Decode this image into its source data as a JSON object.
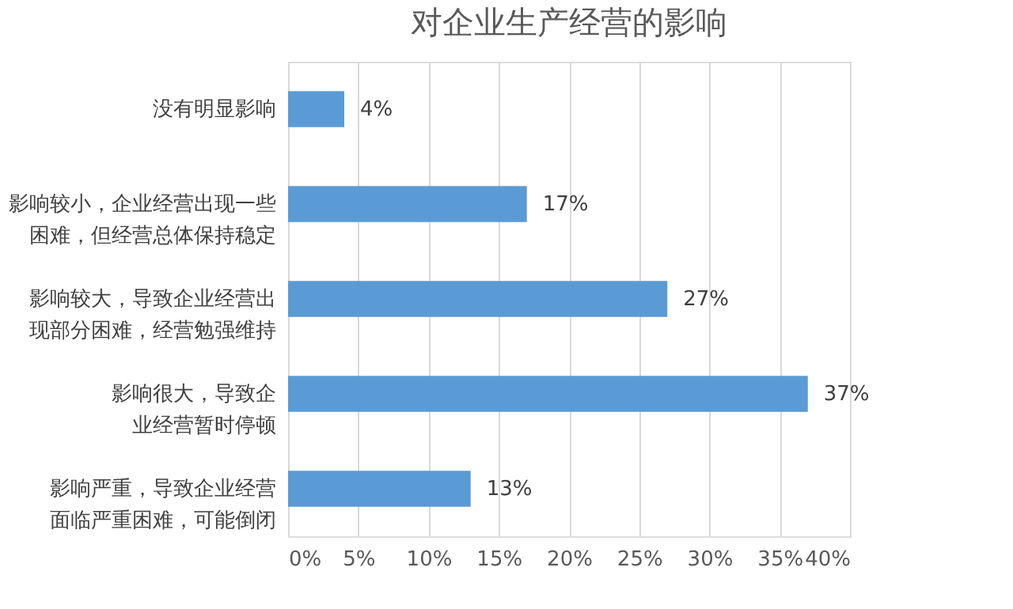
{
  "chart_data": {
    "type": "bar",
    "orientation": "horizontal",
    "title": "对企业生产经营的影响",
    "categories": [
      "没有明显影响",
      "影响较小，企业经营出现一些困难，但经营总体保持稳定",
      "影响较大，导致企业经营出现部分困难，经营勉强维持",
      "影响很大，导致企业经营暂时停顿",
      "影响严重，导致企业经营面临严重困难，可能倒闭"
    ],
    "values": [
      4,
      17,
      27,
      37,
      13
    ],
    "value_labels": [
      "4%",
      "17%",
      "27%",
      "37%",
      "13%"
    ],
    "color": "#5b9bd5",
    "xlim": [
      0,
      40
    ],
    "xticks": [
      {
        "value": 0,
        "label": "0%"
      },
      {
        "value": 5,
        "label": "5%"
      },
      {
        "value": 10,
        "label": "10%"
      },
      {
        "value": 15,
        "label": "15%"
      },
      {
        "value": 20,
        "label": "20%"
      },
      {
        "value": 25,
        "label": "25%"
      },
      {
        "value": 30,
        "label": "30%"
      },
      {
        "value": 35,
        "label": "35%"
      },
      {
        "value": 40,
        "label": "40%"
      }
    ],
    "grid": "x"
  }
}
